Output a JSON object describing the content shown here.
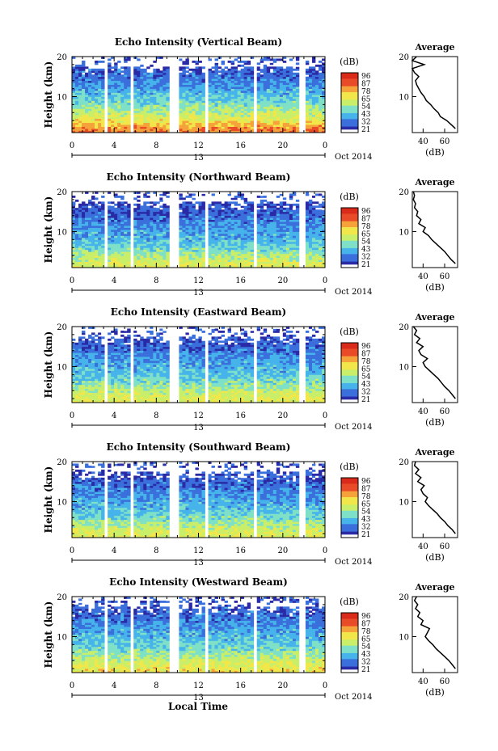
{
  "figure": {
    "x_axis_label": "Local Time",
    "date_label": "Oct 2014",
    "colorbar_unit": "(dB)",
    "colorbar_ticks": [
      "96",
      "87",
      "78",
      "65",
      "54",
      "43",
      "32",
      "21"
    ],
    "colormap": [
      "#ffffff",
      "#2a2aa6",
      "#3a6fdc",
      "#46b4ea",
      "#7fe0c8",
      "#c8ee6a",
      "#f2e74a",
      "#f6a23a",
      "#e94a28",
      "#d92a1a"
    ]
  },
  "chart_data": [
    {
      "type": "heatmap",
      "title": "Echo Intensity (Vertical Beam)",
      "xlabel": "",
      "ylabel": "Height (km)",
      "x_ticks": [
        "0",
        "4",
        "8",
        "12",
        "16",
        "20",
        "0"
      ],
      "day_label": "13",
      "y_ticks": [
        "20",
        "10"
      ],
      "xlim": [
        0,
        24
      ],
      "ylim": [
        1,
        20
      ],
      "data_gaps_hours": [
        [
          3.1,
          3.4
        ],
        [
          5.6,
          5.9
        ],
        [
          9.2,
          10.2
        ],
        [
          12.6,
          13.0
        ],
        [
          17.3,
          17.6
        ],
        [
          21.5,
          22.0
        ]
      ],
      "colorbar_ticks": [
        "96",
        "87",
        "78",
        "65",
        "54",
        "43",
        "32",
        "21"
      ],
      "clim_db": [
        21,
        96
      ],
      "intensity_profile": {
        "height_km": [
          2,
          4,
          6,
          8,
          10,
          12,
          14,
          16,
          18,
          20
        ],
        "db": [
          78,
          66,
          58,
          50,
          45,
          40,
          35,
          32,
          30,
          28
        ]
      },
      "average_profile": {
        "title": "Average",
        "xlabel": "(dB)",
        "x_ticks": [
          "40",
          "60"
        ],
        "y_ticks": [
          "20",
          "10"
        ],
        "xlim": [
          30,
          72
        ],
        "ylim": [
          1,
          20
        ],
        "height_km": [
          2,
          3,
          4,
          5,
          6,
          7,
          8,
          9,
          10,
          11,
          12,
          13,
          14,
          15,
          16,
          17,
          18,
          19,
          20
        ],
        "db": [
          70,
          66,
          62,
          56,
          54,
          50,
          47,
          43,
          41,
          38,
          36,
          34,
          33,
          36,
          32,
          30,
          41,
          30,
          34
        ]
      }
    },
    {
      "type": "heatmap",
      "title": "Echo Intensity (Northward Beam)",
      "xlabel": "",
      "ylabel": "Height (km)",
      "x_ticks": [
        "0",
        "4",
        "8",
        "12",
        "16",
        "20",
        "0"
      ],
      "day_label": "13",
      "y_ticks": [
        "20",
        "10"
      ],
      "xlim": [
        0,
        24
      ],
      "ylim": [
        1,
        20
      ],
      "data_gaps_hours": [
        [
          3.1,
          3.4
        ],
        [
          5.6,
          5.9
        ],
        [
          9.2,
          10.2
        ],
        [
          12.6,
          13.0
        ],
        [
          17.3,
          17.6
        ],
        [
          21.5,
          22.0
        ]
      ],
      "colorbar_ticks": [
        "96",
        "87",
        "78",
        "65",
        "54",
        "43",
        "32",
        "21"
      ],
      "clim_db": [
        21,
        96
      ],
      "intensity_profile": {
        "height_km": [
          2,
          4,
          6,
          8,
          10,
          12,
          14,
          16,
          18,
          20
        ],
        "db": [
          62,
          56,
          48,
          43,
          40,
          36,
          32,
          30,
          28,
          26
        ]
      },
      "average_profile": {
        "title": "Average",
        "xlabel": "(dB)",
        "x_ticks": [
          "40",
          "60"
        ],
        "y_ticks": [
          "20",
          "10"
        ],
        "xlim": [
          30,
          72
        ],
        "ylim": [
          1,
          20
        ],
        "height_km": [
          2,
          3,
          4,
          5,
          6,
          7,
          8,
          9,
          10,
          11,
          12,
          13,
          14,
          15,
          16,
          17,
          18,
          19,
          20
        ],
        "db": [
          70,
          66,
          63,
          60,
          56,
          52,
          48,
          45,
          40,
          42,
          36,
          38,
          34,
          35,
          32,
          33,
          31,
          32,
          31
        ]
      }
    },
    {
      "type": "heatmap",
      "title": "Echo Intensity (Eastward Beam)",
      "xlabel": "",
      "ylabel": "Height (km)",
      "x_ticks": [
        "0",
        "4",
        "8",
        "12",
        "16",
        "20",
        "0"
      ],
      "day_label": "13",
      "y_ticks": [
        "20",
        "10"
      ],
      "xlim": [
        0,
        24
      ],
      "ylim": [
        1,
        20
      ],
      "data_gaps_hours": [
        [
          3.1,
          3.4
        ],
        [
          5.6,
          5.9
        ],
        [
          9.2,
          10.2
        ],
        [
          12.6,
          13.0
        ],
        [
          17.3,
          17.6
        ],
        [
          21.5,
          22.0
        ]
      ],
      "colorbar_ticks": [
        "96",
        "87",
        "78",
        "65",
        "54",
        "43",
        "32",
        "21"
      ],
      "clim_db": [
        21,
        96
      ],
      "intensity_profile": {
        "height_km": [
          2,
          4,
          6,
          8,
          10,
          12,
          14,
          16,
          18,
          20
        ],
        "db": [
          64,
          58,
          50,
          45,
          42,
          38,
          34,
          31,
          29,
          27
        ]
      },
      "average_profile": {
        "title": "Average",
        "xlabel": "(dB)",
        "x_ticks": [
          "40",
          "60"
        ],
        "y_ticks": [
          "20",
          "10"
        ],
        "xlim": [
          30,
          72
        ],
        "ylim": [
          1,
          20
        ],
        "height_km": [
          2,
          3,
          4,
          5,
          6,
          7,
          8,
          9,
          10,
          11,
          12,
          13,
          14,
          15,
          16,
          17,
          18,
          19,
          20
        ],
        "db": [
          70,
          67,
          64,
          60,
          57,
          54,
          50,
          46,
          42,
          40,
          44,
          38,
          36,
          40,
          34,
          37,
          32,
          34,
          31
        ]
      }
    },
    {
      "type": "heatmap",
      "title": "Echo Intensity (Southward Beam)",
      "xlabel": "",
      "ylabel": "Height (km)",
      "x_ticks": [
        "0",
        "4",
        "8",
        "12",
        "16",
        "20",
        "0"
      ],
      "day_label": "13",
      "y_ticks": [
        "20",
        "10"
      ],
      "xlim": [
        0,
        24
      ],
      "ylim": [
        1,
        20
      ],
      "data_gaps_hours": [
        [
          3.1,
          3.4
        ],
        [
          5.6,
          5.9
        ],
        [
          9.2,
          10.2
        ],
        [
          12.6,
          13.0
        ],
        [
          17.3,
          17.6
        ],
        [
          21.5,
          22.0
        ]
      ],
      "colorbar_ticks": [
        "96",
        "87",
        "78",
        "65",
        "54",
        "43",
        "32",
        "21"
      ],
      "clim_db": [
        21,
        96
      ],
      "intensity_profile": {
        "height_km": [
          2,
          4,
          6,
          8,
          10,
          12,
          14,
          16,
          18,
          20
        ],
        "db": [
          63,
          57,
          49,
          44,
          41,
          37,
          33,
          30,
          28,
          26
        ]
      },
      "average_profile": {
        "title": "Average",
        "xlabel": "(dB)",
        "x_ticks": [
          "40",
          "60"
        ],
        "y_ticks": [
          "20",
          "10"
        ],
        "xlim": [
          30,
          72
        ],
        "ylim": [
          1,
          20
        ],
        "height_km": [
          2,
          3,
          4,
          5,
          6,
          7,
          8,
          9,
          10,
          11,
          12,
          13,
          14,
          15,
          16,
          17,
          18,
          19,
          20
        ],
        "db": [
          70,
          67,
          63,
          60,
          56,
          53,
          49,
          45,
          42,
          44,
          40,
          38,
          41,
          35,
          38,
          33,
          36,
          32,
          33
        ]
      }
    },
    {
      "type": "heatmap",
      "title": "Echo Intensity (Westward Beam)",
      "xlabel": "Local Time",
      "ylabel": "Height (km)",
      "x_ticks": [
        "0",
        "4",
        "8",
        "12",
        "16",
        "20",
        "0"
      ],
      "day_label": "13",
      "y_ticks": [
        "20",
        "10"
      ],
      "xlim": [
        0,
        24
      ],
      "ylim": [
        1,
        20
      ],
      "data_gaps_hours": [
        [
          3.1,
          3.4
        ],
        [
          5.6,
          5.9
        ],
        [
          9.2,
          10.2
        ],
        [
          12.6,
          13.0
        ],
        [
          17.3,
          17.6
        ],
        [
          21.5,
          22.0
        ]
      ],
      "colorbar_ticks": [
        "96",
        "87",
        "78",
        "65",
        "54",
        "43",
        "32",
        "21"
      ],
      "clim_db": [
        21,
        96
      ],
      "intensity_profile": {
        "height_km": [
          2,
          4,
          6,
          8,
          10,
          12,
          14,
          16,
          18,
          20
        ],
        "db": [
          66,
          60,
          52,
          46,
          43,
          39,
          35,
          32,
          30,
          27
        ]
      },
      "average_profile": {
        "title": "Average",
        "xlabel": "(dB)",
        "x_ticks": [
          "40",
          "60"
        ],
        "y_ticks": [
          "20",
          "10"
        ],
        "xlim": [
          30,
          72
        ],
        "ylim": [
          1,
          20
        ],
        "height_km": [
          2,
          3,
          4,
          5,
          6,
          7,
          8,
          9,
          10,
          11,
          12,
          13,
          14,
          15,
          16,
          17,
          18,
          19,
          20
        ],
        "db": [
          70,
          67,
          64,
          60,
          56,
          52,
          49,
          45,
          42,
          44,
          46,
          38,
          40,
          35,
          37,
          33,
          35,
          32,
          34
        ]
      }
    }
  ]
}
